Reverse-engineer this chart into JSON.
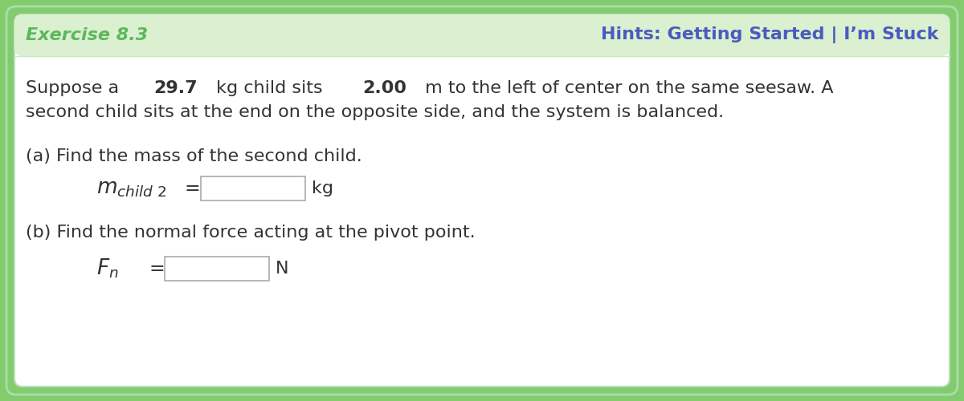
{
  "title_left": "Exercise 8.3",
  "title_right": "Hints: Getting Started | I’m Stuck",
  "title_color": "#5cb85c",
  "hints_color": "#5b6bbf",
  "body_text_line1a": "Suppose a ",
  "body_bold1": "29.7",
  "body_text_line1b": " kg child sits ",
  "body_bold2": "2.00",
  "body_text_line1c": " m to the left of center on the same seesaw. A",
  "body_text_line2": "second child sits at the end on the opposite side, and the system is balanced.",
  "part_a_label": "(a) Find the mass of the second child.",
  "part_a_unit": "kg",
  "part_b_label": "(b) Find the normal force acting at the pivot point.",
  "part_b_unit": "N",
  "bg_outer": "#82cc6e",
  "bg_inner": "#ffffff",
  "bg_header": "#daf0d0",
  "border_inner": "#aaddaa",
  "input_box_border": "#aaaaaa",
  "input_box_fill": "#ffffff",
  "text_color": "#333333",
  "title_green": "#5cb85c",
  "hints_blue": "#4a5bbf",
  "font_size_body": 16,
  "font_size_title": 15,
  "font_size_eq": 16
}
